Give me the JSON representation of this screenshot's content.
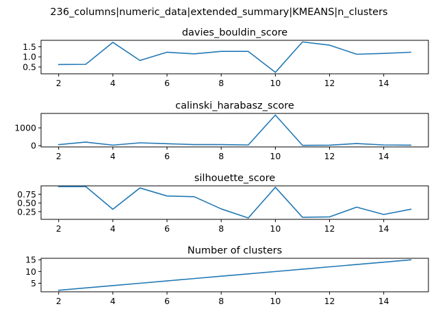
{
  "figure": {
    "suptitle": "236_columns|numeric_data|extended_summary|KMEANS|n_clusters"
  },
  "colors": {
    "line": "#1f77b4",
    "axes": "#000000",
    "background": "#ffffff"
  },
  "chart_data": [
    {
      "type": "line",
      "title": "davies_bouldin_score",
      "xlabel": "",
      "ylabel": "",
      "x": [
        2,
        3,
        4,
        5,
        6,
        7,
        8,
        9,
        10,
        11,
        12,
        13,
        14,
        15
      ],
      "y": [
        0.62,
        0.63,
        1.72,
        0.82,
        1.23,
        1.15,
        1.27,
        1.27,
        0.23,
        1.74,
        1.58,
        1.13,
        1.17,
        1.23
      ],
      "xlim": [
        1.35,
        15.65
      ],
      "ylim": [
        0.16,
        1.82
      ],
      "xticks": [
        "2",
        "4",
        "6",
        "8",
        "10",
        "12",
        "14"
      ],
      "yticks": [
        "0.5",
        "1.0",
        "1.5"
      ],
      "grid": false
    },
    {
      "type": "line",
      "title": "calinski_harabasz_score",
      "xlabel": "",
      "ylabel": "",
      "x": [
        2,
        3,
        4,
        5,
        6,
        7,
        8,
        9,
        10,
        11,
        12,
        13,
        14,
        15
      ],
      "y": [
        60,
        200,
        30,
        160,
        110,
        60,
        60,
        40,
        1720,
        20,
        30,
        120,
        40,
        30
      ],
      "xlim": [
        1.35,
        15.65
      ],
      "ylim": [
        -70,
        1810
      ],
      "xticks": [
        "2",
        "4",
        "6",
        "8",
        "10",
        "12",
        "14"
      ],
      "yticks": [
        "0",
        "1000"
      ],
      "grid": false
    },
    {
      "type": "line",
      "title": "silhouette_score",
      "xlabel": "",
      "ylabel": "",
      "x": [
        2,
        3,
        4,
        5,
        6,
        7,
        8,
        9,
        10,
        11,
        12,
        13,
        14,
        15
      ],
      "y": [
        0.97,
        0.97,
        0.32,
        0.93,
        0.7,
        0.68,
        0.33,
        0.07,
        0.95,
        0.09,
        0.1,
        0.38,
        0.17,
        0.32
      ],
      "xlim": [
        1.35,
        15.65
      ],
      "ylim": [
        0.03,
        0.99
      ],
      "xticks": [
        "2",
        "4",
        "6",
        "8",
        "10",
        "12",
        "14"
      ],
      "yticks": [
        "0.25",
        "0.50",
        "0.75"
      ],
      "grid": false
    },
    {
      "type": "line",
      "title": "Number of clusters",
      "xlabel": "",
      "ylabel": "",
      "x": [
        2,
        3,
        4,
        5,
        6,
        7,
        8,
        9,
        10,
        11,
        12,
        13,
        14,
        15
      ],
      "y": [
        2,
        3,
        4,
        5,
        6,
        7,
        8,
        9,
        10,
        11,
        12,
        13,
        14,
        15
      ],
      "xlim": [
        1.35,
        15.65
      ],
      "ylim": [
        1.35,
        15.65
      ],
      "xticks": [
        "2",
        "4",
        "6",
        "8",
        "10",
        "12",
        "14"
      ],
      "yticks": [
        "5",
        "10",
        "15"
      ],
      "grid": false
    }
  ]
}
